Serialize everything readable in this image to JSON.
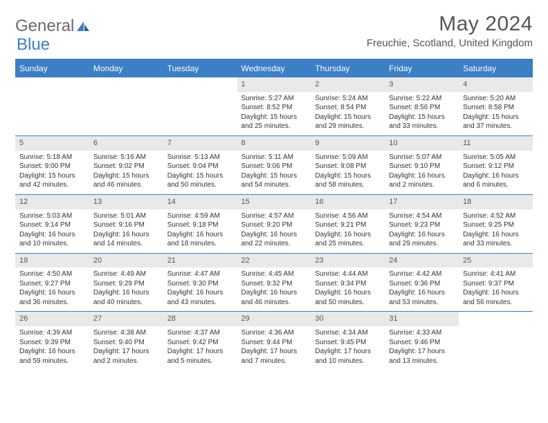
{
  "logo": {
    "text_gray": "General",
    "text_blue": "Blue"
  },
  "title": "May 2024",
  "location": "Freuchie, Scotland, United Kingdom",
  "weekdays": [
    "Sunday",
    "Monday",
    "Tuesday",
    "Wednesday",
    "Thursday",
    "Friday",
    "Saturday"
  ],
  "colors": {
    "header_bg": "#3b7fc4",
    "header_text": "#ffffff",
    "daynum_bg": "#e9e9e9",
    "border": "#3b7fc4",
    "logo_gray": "#6b6b6b",
    "logo_blue": "#3b7fc4",
    "body_text": "#333333"
  },
  "weeks": [
    [
      null,
      null,
      null,
      {
        "n": "1",
        "sr": "Sunrise: 5:27 AM",
        "ss": "Sunset: 8:52 PM",
        "dl": "Daylight: 15 hours and 25 minutes."
      },
      {
        "n": "2",
        "sr": "Sunrise: 5:24 AM",
        "ss": "Sunset: 8:54 PM",
        "dl": "Daylight: 15 hours and 29 minutes."
      },
      {
        "n": "3",
        "sr": "Sunrise: 5:22 AM",
        "ss": "Sunset: 8:56 PM",
        "dl": "Daylight: 15 hours and 33 minutes."
      },
      {
        "n": "4",
        "sr": "Sunrise: 5:20 AM",
        "ss": "Sunset: 8:58 PM",
        "dl": "Daylight: 15 hours and 37 minutes."
      }
    ],
    [
      {
        "n": "5",
        "sr": "Sunrise: 5:18 AM",
        "ss": "Sunset: 9:00 PM",
        "dl": "Daylight: 15 hours and 42 minutes."
      },
      {
        "n": "6",
        "sr": "Sunrise: 5:16 AM",
        "ss": "Sunset: 9:02 PM",
        "dl": "Daylight: 15 hours and 46 minutes."
      },
      {
        "n": "7",
        "sr": "Sunrise: 5:13 AM",
        "ss": "Sunset: 9:04 PM",
        "dl": "Daylight: 15 hours and 50 minutes."
      },
      {
        "n": "8",
        "sr": "Sunrise: 5:11 AM",
        "ss": "Sunset: 9:06 PM",
        "dl": "Daylight: 15 hours and 54 minutes."
      },
      {
        "n": "9",
        "sr": "Sunrise: 5:09 AM",
        "ss": "Sunset: 9:08 PM",
        "dl": "Daylight: 15 hours and 58 minutes."
      },
      {
        "n": "10",
        "sr": "Sunrise: 5:07 AM",
        "ss": "Sunset: 9:10 PM",
        "dl": "Daylight: 16 hours and 2 minutes."
      },
      {
        "n": "11",
        "sr": "Sunrise: 5:05 AM",
        "ss": "Sunset: 9:12 PM",
        "dl": "Daylight: 16 hours and 6 minutes."
      }
    ],
    [
      {
        "n": "12",
        "sr": "Sunrise: 5:03 AM",
        "ss": "Sunset: 9:14 PM",
        "dl": "Daylight: 16 hours and 10 minutes."
      },
      {
        "n": "13",
        "sr": "Sunrise: 5:01 AM",
        "ss": "Sunset: 9:16 PM",
        "dl": "Daylight: 16 hours and 14 minutes."
      },
      {
        "n": "14",
        "sr": "Sunrise: 4:59 AM",
        "ss": "Sunset: 9:18 PM",
        "dl": "Daylight: 16 hours and 18 minutes."
      },
      {
        "n": "15",
        "sr": "Sunrise: 4:57 AM",
        "ss": "Sunset: 9:20 PM",
        "dl": "Daylight: 16 hours and 22 minutes."
      },
      {
        "n": "16",
        "sr": "Sunrise: 4:56 AM",
        "ss": "Sunset: 9:21 PM",
        "dl": "Daylight: 16 hours and 25 minutes."
      },
      {
        "n": "17",
        "sr": "Sunrise: 4:54 AM",
        "ss": "Sunset: 9:23 PM",
        "dl": "Daylight: 16 hours and 29 minutes."
      },
      {
        "n": "18",
        "sr": "Sunrise: 4:52 AM",
        "ss": "Sunset: 9:25 PM",
        "dl": "Daylight: 16 hours and 33 minutes."
      }
    ],
    [
      {
        "n": "19",
        "sr": "Sunrise: 4:50 AM",
        "ss": "Sunset: 9:27 PM",
        "dl": "Daylight: 16 hours and 36 minutes."
      },
      {
        "n": "20",
        "sr": "Sunrise: 4:49 AM",
        "ss": "Sunset: 9:29 PM",
        "dl": "Daylight: 16 hours and 40 minutes."
      },
      {
        "n": "21",
        "sr": "Sunrise: 4:47 AM",
        "ss": "Sunset: 9:30 PM",
        "dl": "Daylight: 16 hours and 43 minutes."
      },
      {
        "n": "22",
        "sr": "Sunrise: 4:45 AM",
        "ss": "Sunset: 9:32 PM",
        "dl": "Daylight: 16 hours and 46 minutes."
      },
      {
        "n": "23",
        "sr": "Sunrise: 4:44 AM",
        "ss": "Sunset: 9:34 PM",
        "dl": "Daylight: 16 hours and 50 minutes."
      },
      {
        "n": "24",
        "sr": "Sunrise: 4:42 AM",
        "ss": "Sunset: 9:36 PM",
        "dl": "Daylight: 16 hours and 53 minutes."
      },
      {
        "n": "25",
        "sr": "Sunrise: 4:41 AM",
        "ss": "Sunset: 9:37 PM",
        "dl": "Daylight: 16 hours and 56 minutes."
      }
    ],
    [
      {
        "n": "26",
        "sr": "Sunrise: 4:39 AM",
        "ss": "Sunset: 9:39 PM",
        "dl": "Daylight: 16 hours and 59 minutes."
      },
      {
        "n": "27",
        "sr": "Sunrise: 4:38 AM",
        "ss": "Sunset: 9:40 PM",
        "dl": "Daylight: 17 hours and 2 minutes."
      },
      {
        "n": "28",
        "sr": "Sunrise: 4:37 AM",
        "ss": "Sunset: 9:42 PM",
        "dl": "Daylight: 17 hours and 5 minutes."
      },
      {
        "n": "29",
        "sr": "Sunrise: 4:36 AM",
        "ss": "Sunset: 9:44 PM",
        "dl": "Daylight: 17 hours and 7 minutes."
      },
      {
        "n": "30",
        "sr": "Sunrise: 4:34 AM",
        "ss": "Sunset: 9:45 PM",
        "dl": "Daylight: 17 hours and 10 minutes."
      },
      {
        "n": "31",
        "sr": "Sunrise: 4:33 AM",
        "ss": "Sunset: 9:46 PM",
        "dl": "Daylight: 17 hours and 13 minutes."
      },
      null
    ]
  ]
}
